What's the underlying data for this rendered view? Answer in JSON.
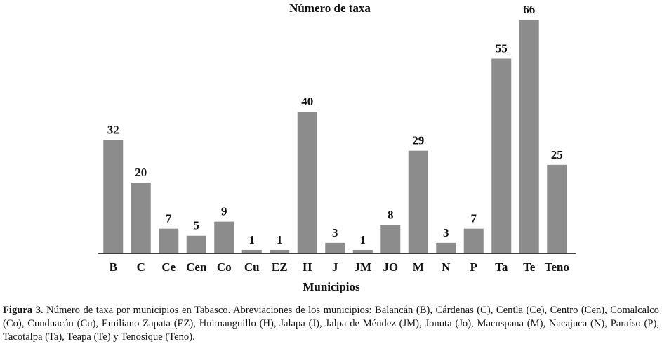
{
  "chart_data": {
    "type": "bar",
    "title": "Número de taxa",
    "x_label": "Municipios",
    "categories": [
      "B",
      "C",
      "Ce",
      "Cen",
      "Co",
      "Cu",
      "EZ",
      "H",
      "J",
      "JM",
      "JO",
      "M",
      "N",
      "P",
      "Ta",
      "Te",
      "Teno"
    ],
    "values": [
      32,
      20,
      7,
      5,
      9,
      1,
      1,
      40,
      3,
      1,
      8,
      29,
      3,
      7,
      55,
      66,
      25
    ],
    "color": "#8c8c8c",
    "data_labels": true
  },
  "caption": {
    "label": "Figura 3.",
    "text": "Número de taxa por municipios en Tabasco. Abreviaciones de los municipios: Balancán (B), Cárdenas (C), Centla (Ce), Centro (Cen), Comalcalco (Co), Cunduacán (Cu), Emiliano Zapata (EZ), Huimanguillo (H), Jalapa (J), Jalpa de Méndez (JM), Jonuta (Jo), Macuspana (M), Nacajuca (N), Paraíso (P), Tacotalpa (Ta), Teapa (Te) y Tenosique (Teno)."
  }
}
